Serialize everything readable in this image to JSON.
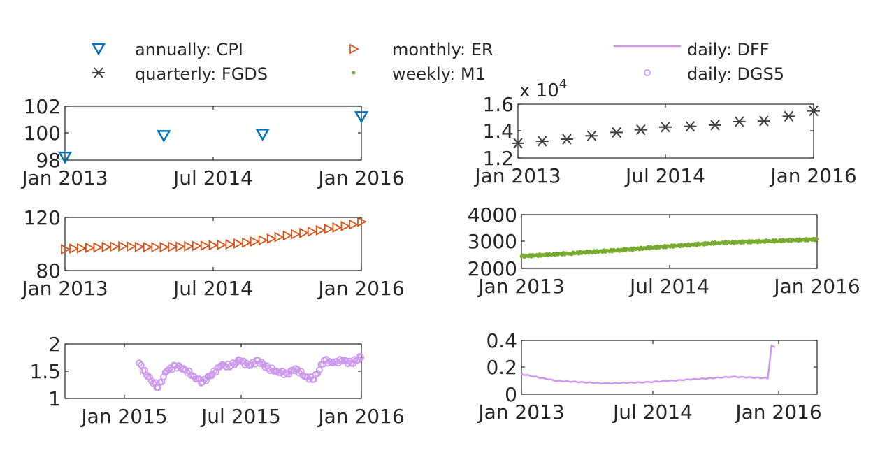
{
  "legend": {
    "items": [
      {
        "label": "annually: CPI",
        "marker": "triangle-down",
        "color": "#0072BD"
      },
      {
        "label": "monthly: ER",
        "marker": "triangle-right",
        "color": "#D95319"
      },
      {
        "label": "daily: DFF",
        "marker": "line",
        "color": "#CC99EE"
      },
      {
        "label": "quarterly: FGDS",
        "marker": "asterisk",
        "color": "#404040"
      },
      {
        "label": "weekly: M1",
        "marker": "dot",
        "color": "#77AC30"
      },
      {
        "label": "daily: DGS5",
        "marker": "circle",
        "color": "#CC99EE"
      }
    ]
  },
  "chart_data": [
    {
      "type": "scatter",
      "series": [
        {
          "name": "annually: CPI",
          "marker": "triangle-down",
          "color": "#0072BD",
          "x": [
            "2013-01-01",
            "2014-01-01",
            "2015-01-01",
            "2016-01-01"
          ],
          "y": [
            98.2,
            99.8,
            99.9,
            101.2
          ]
        }
      ],
      "xlim": [
        "2013-01-01",
        "2016-01-01"
      ],
      "ylim": [
        98,
        102
      ],
      "xticks": [
        "Jan 2013",
        "Jul 2014",
        "Jan 2016"
      ],
      "yticks": [
        "98",
        "100",
        "102"
      ],
      "grid": false
    },
    {
      "type": "scatter",
      "series": [
        {
          "name": "quarterly: FGDS",
          "marker": "asterisk",
          "color": "#404040",
          "x": [
            "2013-01-01",
            "2013-04-01",
            "2013-07-01",
            "2013-10-01",
            "2014-01-01",
            "2014-04-01",
            "2014-07-01",
            "2014-10-01",
            "2015-01-01",
            "2015-04-01",
            "2015-07-01",
            "2015-10-01",
            "2016-01-01"
          ],
          "y": [
            13100,
            13250,
            13400,
            13650,
            13900,
            14100,
            14300,
            14350,
            14450,
            14700,
            14750,
            15100,
            15500
          ]
        }
      ],
      "xlim": [
        "2013-01-01",
        "2016-01-01"
      ],
      "ylim": [
        12000,
        16000
      ],
      "xticks": [
        "Jan 2013",
        "Jul 2014",
        "Jan 2016"
      ],
      "yticks": [
        "1.2",
        "1.4",
        "1.6"
      ],
      "exponent": {
        "base": "x 10",
        "power": "4"
      },
      "grid": false
    },
    {
      "type": "scatter",
      "series": [
        {
          "name": "monthly: ER",
          "marker": "triangle-right",
          "color": "#D95319",
          "x": [
            "2013-01-01",
            "2013-02-01",
            "2013-03-01",
            "2013-04-01",
            "2013-05-01",
            "2013-06-01",
            "2013-07-01",
            "2013-08-01",
            "2013-09-01",
            "2013-10-01",
            "2013-11-01",
            "2013-12-01",
            "2014-01-01",
            "2014-02-01",
            "2014-03-01",
            "2014-04-01",
            "2014-05-01",
            "2014-06-01",
            "2014-07-01",
            "2014-08-01",
            "2014-09-01",
            "2014-10-01",
            "2014-11-01",
            "2014-12-01",
            "2015-01-01",
            "2015-02-01",
            "2015-03-01",
            "2015-04-01",
            "2015-05-01",
            "2015-06-01",
            "2015-07-01",
            "2015-08-01",
            "2015-09-01",
            "2015-10-01",
            "2015-11-01",
            "2015-12-01",
            "2016-01-01"
          ],
          "y": [
            96.0,
            96.5,
            96.8,
            97.1,
            97.4,
            97.7,
            98.0,
            98.2,
            98.1,
            97.8,
            97.6,
            97.5,
            97.6,
            97.9,
            98.0,
            98.2,
            98.5,
            98.7,
            99.0,
            99.3,
            99.7,
            100.3,
            101.0,
            101.8,
            102.8,
            104.0,
            105.2,
            106.3,
            107.3,
            108.3,
            109.3,
            110.3,
            111.3,
            112.4,
            113.5,
            114.7,
            116.8
          ]
        }
      ],
      "xlim": [
        "2013-01-01",
        "2016-01-01"
      ],
      "ylim": [
        80,
        120
      ],
      "xticks": [
        "Jan 2013",
        "Jul 2014",
        "Jan 2016"
      ],
      "yticks": [
        "80",
        "120"
      ],
      "grid": false
    },
    {
      "type": "scatter",
      "series": [
        {
          "name": "weekly: M1",
          "marker": "dot",
          "color": "#77AC30",
          "x": [
            "2013-01-01",
            "2013-07-01",
            "2014-01-01",
            "2014-07-01",
            "2015-01-01",
            "2015-07-01",
            "2015-12-31"
          ],
          "y": [
            2450,
            2560,
            2680,
            2820,
            2950,
            3010,
            3080
          ]
        }
      ],
      "xlim": [
        "2013-01-01",
        "2016-01-01"
      ],
      "ylim": [
        2000,
        4000
      ],
      "xticks": [
        "Jan 2013",
        "Jul 2014",
        "Jan 2016"
      ],
      "yticks": [
        "2000",
        "3000",
        "4000"
      ],
      "grid": false
    },
    {
      "type": "scatter",
      "series": [
        {
          "name": "daily: DGS5",
          "marker": "circle",
          "color": "#CC99EE",
          "x": [
            "2015-01-01",
            "2015-01-15",
            "2015-02-01",
            "2015-02-15",
            "2015-03-01",
            "2015-03-15",
            "2015-04-01",
            "2015-04-15",
            "2015-05-01",
            "2015-05-15",
            "2015-06-01",
            "2015-06-15",
            "2015-07-01",
            "2015-07-15",
            "2015-08-01",
            "2015-08-15",
            "2015-09-01",
            "2015-09-15",
            "2015-10-01",
            "2015-10-15",
            "2015-11-01",
            "2015-11-15",
            "2015-12-01",
            "2015-12-15",
            "2015-12-31"
          ],
          "y": [
            1.65,
            1.4,
            1.2,
            1.5,
            1.6,
            1.55,
            1.4,
            1.3,
            1.45,
            1.6,
            1.6,
            1.7,
            1.6,
            1.7,
            1.55,
            1.5,
            1.45,
            1.55,
            1.4,
            1.35,
            1.7,
            1.65,
            1.7,
            1.65,
            1.75
          ]
        }
      ],
      "xlim": [
        "2014-09-01",
        "2016-01-01"
      ],
      "ylim": [
        1,
        2
      ],
      "xticks": [
        "Jan 2015",
        "Jul 2015",
        "Jan 2016"
      ],
      "yticks": [
        "1",
        "1.5",
        "2"
      ],
      "grid": false
    },
    {
      "type": "line",
      "series": [
        {
          "name": "daily: DFF",
          "color": "#CC99EE",
          "x": [
            "2013-01-01",
            "2013-06-01",
            "2014-01-01",
            "2014-07-01",
            "2015-01-01",
            "2015-07-01",
            "2015-12-01",
            "2015-12-17",
            "2015-12-31"
          ],
          "y": [
            0.15,
            0.1,
            0.08,
            0.09,
            0.11,
            0.13,
            0.12,
            0.36,
            0.35
          ]
        }
      ],
      "xlim": [
        "2013-01-01",
        "2016-07-01"
      ],
      "ylim": [
        0,
        0.4
      ],
      "xticks": [
        "Jan 2013",
        "Jul 2014",
        "Jan 2016"
      ],
      "yticks": [
        "0",
        "0.2",
        "0.4"
      ],
      "grid": false
    }
  ]
}
